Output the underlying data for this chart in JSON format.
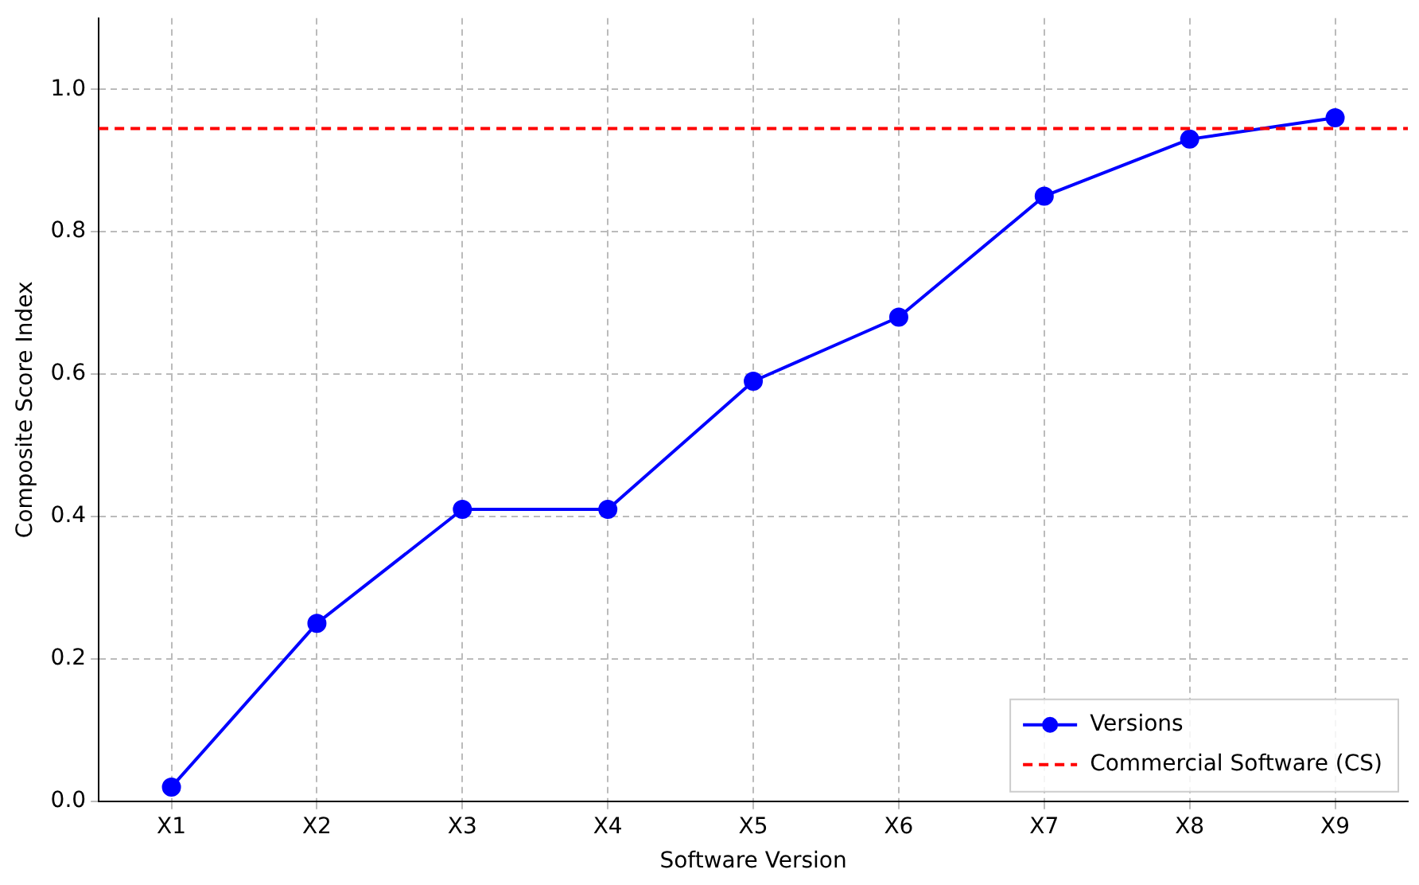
{
  "chart_data": {
    "type": "line",
    "xlabel": "Software Version",
    "ylabel": "Composite Score Index",
    "categories": [
      "X1",
      "X2",
      "X3",
      "X4",
      "X5",
      "X6",
      "X7",
      "X8",
      "X9"
    ],
    "series": [
      {
        "name": "Versions",
        "color": "#0000ff",
        "values": [
          0.02,
          0.25,
          0.41,
          0.41,
          0.59,
          0.68,
          0.85,
          0.93,
          0.96
        ]
      }
    ],
    "ref_lines": [
      {
        "axis": "y",
        "value": 0.945,
        "label": "Commercial Software (CS)",
        "color": "#ff0000",
        "line_style": "dashed"
      }
    ],
    "ylim": [
      0,
      1.1
    ],
    "yticks": [
      {
        "value": 0,
        "label": "0.0"
      },
      {
        "value": 0.2,
        "label": "0.2"
      },
      {
        "value": 0.4,
        "label": "0.4"
      },
      {
        "value": 0.6,
        "label": "0.6"
      },
      {
        "value": 0.8,
        "label": "0.8"
      },
      {
        "value": 1,
        "label": "1.0"
      }
    ],
    "grid": true,
    "legend": "bottom right",
    "marker": "circle",
    "line_style": "solid"
  }
}
